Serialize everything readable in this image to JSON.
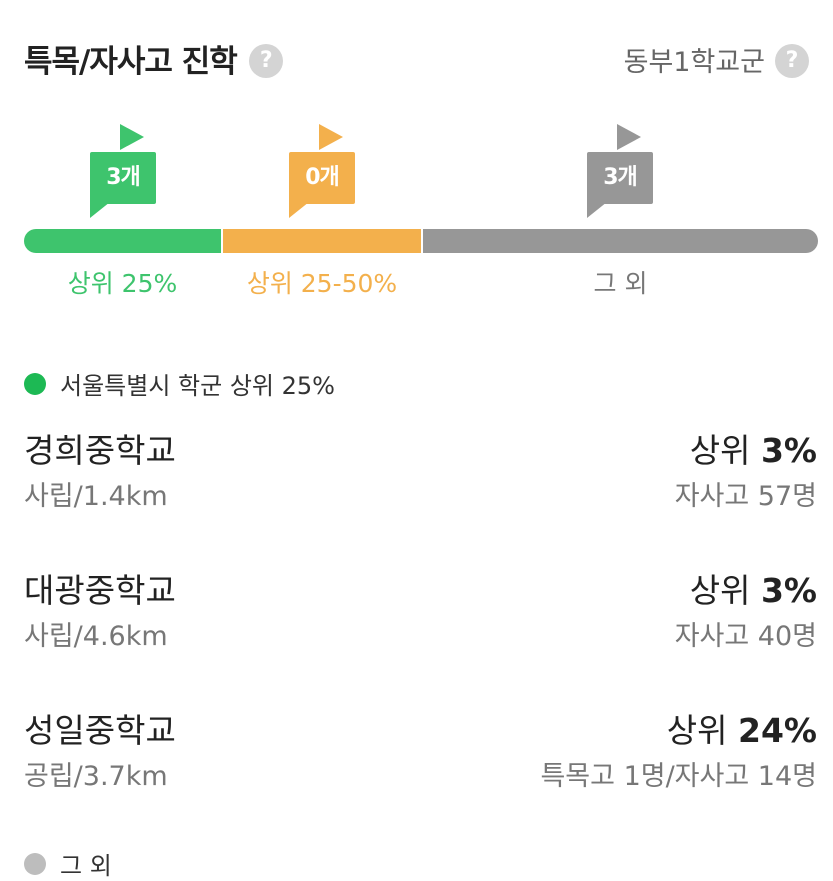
{
  "header": {
    "title": "특목/자사고 진학",
    "region": "동부1학교군",
    "help_glyph": "?"
  },
  "tiers": [
    {
      "count": "3개",
      "label": "상위 25%",
      "color": "#3ec46d"
    },
    {
      "count": "0개",
      "label": "상위 25-50%",
      "color": "#f3b04c"
    },
    {
      "count": "3개",
      "label": "그 외",
      "color": "#979797"
    }
  ],
  "groups": [
    {
      "label": "서울특별시 학군 상위 25%",
      "dot_color": "#1db954",
      "schools": [
        {
          "name": "경희중학교",
          "meta": "사립/1.4km",
          "rank_prefix": "상위 ",
          "rank_value": "3%",
          "stats": "자사고 57명"
        },
        {
          "name": "대광중학교",
          "meta": "사립/4.6km",
          "rank_prefix": "상위 ",
          "rank_value": "3%",
          "stats": "자사고 40명"
        },
        {
          "name": "성일중학교",
          "meta": "공립/3.7km",
          "rank_prefix": "상위 ",
          "rank_value": "24%",
          "stats": "특목고 1명/자사고 14명"
        }
      ]
    },
    {
      "label": "그 외",
      "dot_color": "#bdbdbd",
      "schools": []
    }
  ]
}
